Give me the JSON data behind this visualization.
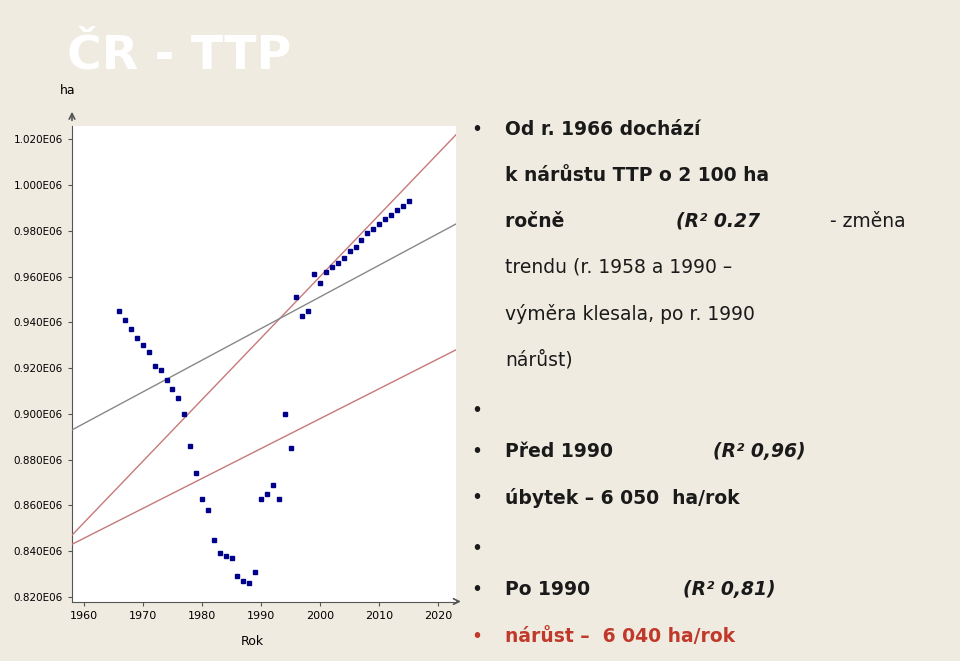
{
  "title": "ČR - TTP",
  "title_bg": "#b03535",
  "title_color": "#ffffff",
  "page_bg": "#f0ebe0",
  "plot_bg": "#ffffff",
  "plot_border": "#aaaaaa",
  "xlabel": "Rok",
  "ylabel": "ha",
  "xlim": [
    1958,
    2023
  ],
  "ylim": [
    818000,
    1026000
  ],
  "yticks": [
    820000,
    840000,
    860000,
    880000,
    900000,
    920000,
    940000,
    960000,
    980000,
    1000000,
    1020000
  ],
  "ytick_labels": [
    "0.820E06",
    "0.840E06",
    "0.860E06",
    "0.880E06",
    "0.900E06",
    "0.920E06",
    "0.940E06",
    "0.960E06",
    "0.980E06",
    "1.000E06",
    "1.020E06"
  ],
  "xticks": [
    1960,
    1970,
    1980,
    1990,
    2000,
    2010,
    2020
  ],
  "data_color": "#00008B",
  "trend_color1": "#c87878",
  "trend_color2": "#888888",
  "trend_color3": "#c87878",
  "data_points": [
    [
      1966,
      945000
    ],
    [
      1967,
      941000
    ],
    [
      1968,
      937000
    ],
    [
      1969,
      933000
    ],
    [
      1970,
      930000
    ],
    [
      1971,
      927000
    ],
    [
      1972,
      921000
    ],
    [
      1973,
      919000
    ],
    [
      1974,
      915000
    ],
    [
      1975,
      911000
    ],
    [
      1976,
      907000
    ],
    [
      1977,
      900000
    ],
    [
      1978,
      886000
    ],
    [
      1979,
      874000
    ],
    [
      1980,
      863000
    ],
    [
      1981,
      858000
    ],
    [
      1982,
      845000
    ],
    [
      1983,
      839000
    ],
    [
      1984,
      838000
    ],
    [
      1985,
      837000
    ],
    [
      1986,
      829000
    ],
    [
      1987,
      827000
    ],
    [
      1988,
      826000
    ],
    [
      1989,
      831000
    ],
    [
      1990,
      863000
    ],
    [
      1991,
      865000
    ],
    [
      1992,
      869000
    ],
    [
      1993,
      863000
    ],
    [
      1994,
      900000
    ],
    [
      1995,
      885000
    ],
    [
      1996,
      951000
    ],
    [
      1997,
      943000
    ],
    [
      1998,
      945000
    ],
    [
      1999,
      961000
    ],
    [
      2000,
      957000
    ],
    [
      2001,
      962000
    ],
    [
      2002,
      964000
    ],
    [
      2003,
      966000
    ],
    [
      2004,
      968000
    ],
    [
      2005,
      971000
    ],
    [
      2006,
      973000
    ],
    [
      2007,
      976000
    ],
    [
      2008,
      979000
    ],
    [
      2009,
      981000
    ],
    [
      2010,
      983000
    ],
    [
      2011,
      985000
    ],
    [
      2012,
      987000
    ],
    [
      2013,
      989000
    ],
    [
      2014,
      991000
    ],
    [
      2015,
      993000
    ]
  ],
  "trend_line1": {
    "x": [
      1958,
      2023
    ],
    "y": [
      847000,
      1022000
    ]
  },
  "trend_line2": {
    "x": [
      1958,
      2023
    ],
    "y": [
      893000,
      983000
    ]
  },
  "trend_line3": {
    "x": [
      1958,
      2023
    ],
    "y": [
      843000,
      928000
    ]
  }
}
